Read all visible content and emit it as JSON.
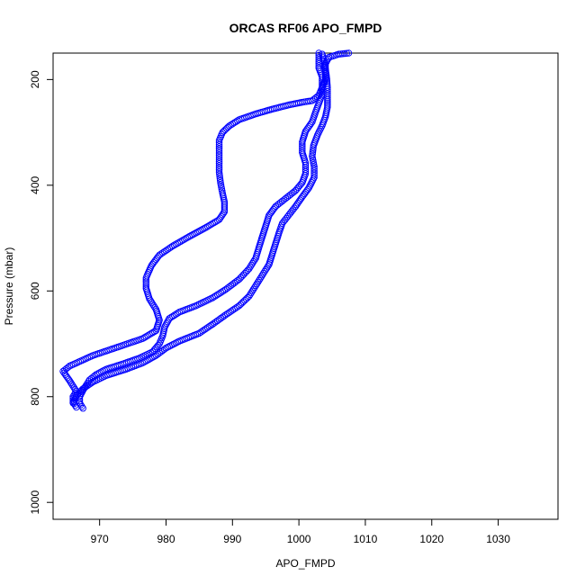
{
  "chart_data": {
    "type": "scatter",
    "title": "ORCAS RF06 APO_FMPD",
    "xlabel": "APO_FMPD",
    "ylabel": "Pressure (mbar)",
    "xlim": [
      963,
      1039
    ],
    "ylim": [
      1032,
      150
    ],
    "y_reversed": true,
    "x_ticks": [
      970,
      980,
      990,
      1000,
      1010,
      1020,
      1030
    ],
    "y_ticks": [
      200,
      400,
      600,
      800,
      1000
    ],
    "grid": false,
    "marker": "open-circle",
    "color": "#0000ff",
    "series": [
      {
        "points": [
          [
            1007.5,
            150
          ],
          [
            1006,
            152
          ],
          [
            1004.5,
            158
          ],
          [
            1004,
            170
          ],
          [
            1004,
            185
          ],
          [
            1004,
            200
          ],
          [
            1003.5,
            215
          ],
          [
            1003,
            230
          ],
          [
            1002,
            240
          ],
          [
            1000.5,
            243
          ],
          [
            998.5,
            248
          ],
          [
            996,
            256
          ],
          [
            993.5,
            265
          ],
          [
            991,
            276
          ],
          [
            989.5,
            288
          ],
          [
            988.5,
            300
          ],
          [
            988,
            315
          ],
          [
            988,
            335
          ],
          [
            988,
            355
          ],
          [
            988,
            375
          ],
          [
            988.2,
            395
          ],
          [
            988.5,
            415
          ],
          [
            988.8,
            432
          ],
          [
            988.8,
            450
          ],
          [
            988,
            465
          ],
          [
            986,
            480
          ],
          [
            983.5,
            497
          ],
          [
            981,
            515
          ],
          [
            979,
            532
          ],
          [
            977.8,
            552
          ],
          [
            977,
            575
          ],
          [
            977,
            595
          ],
          [
            977.5,
            615
          ],
          [
            978.5,
            635
          ],
          [
            979,
            655
          ],
          [
            978.5,
            675
          ],
          [
            976.5,
            690
          ],
          [
            973,
            705
          ],
          [
            969,
            722
          ],
          [
            965.5,
            742
          ],
          [
            964.5,
            752
          ],
          [
            965.5,
            770
          ],
          [
            966.5,
            790
          ],
          [
            966,
            800
          ],
          [
            966,
            810
          ],
          [
            966.5,
            820
          ]
        ]
      },
      {
        "points": [
          [
            967.5,
            822
          ],
          [
            967,
            812
          ],
          [
            967,
            800
          ],
          [
            967.5,
            788
          ],
          [
            968,
            778
          ],
          [
            968.5,
            768
          ],
          [
            969.5,
            758
          ],
          [
            971,
            748
          ],
          [
            973.5,
            738
          ],
          [
            976,
            727
          ],
          [
            978,
            715
          ],
          [
            979,
            700
          ],
          [
            979.5,
            685
          ],
          [
            979.8,
            668
          ],
          [
            980.5,
            652
          ],
          [
            982,
            640
          ],
          [
            984.5,
            628
          ],
          [
            987,
            613
          ],
          [
            989,
            597
          ],
          [
            991,
            578
          ],
          [
            992.5,
            558
          ],
          [
            993.5,
            538
          ],
          [
            994,
            517
          ],
          [
            994.5,
            497
          ],
          [
            995,
            477
          ],
          [
            995.5,
            457
          ],
          [
            996.5,
            440
          ],
          [
            998,
            425
          ],
          [
            999.5,
            410
          ],
          [
            1000.5,
            395
          ],
          [
            1001,
            378
          ],
          [
            1001,
            358
          ],
          [
            1000.5,
            338
          ],
          [
            1000.5,
            318
          ],
          [
            1001,
            298
          ],
          [
            1002,
            280
          ],
          [
            1002.5,
            262
          ],
          [
            1003,
            245
          ],
          [
            1003.5,
            228
          ],
          [
            1003.5,
            210
          ],
          [
            1003.5,
            195
          ],
          [
            1003,
            178
          ],
          [
            1003,
            162
          ],
          [
            1003,
            150
          ]
        ]
      },
      {
        "points": [
          [
            966,
            812
          ],
          [
            966.5,
            798
          ],
          [
            967.5,
            785
          ],
          [
            969,
            772
          ],
          [
            971,
            760
          ],
          [
            974,
            748
          ],
          [
            976.5,
            736
          ],
          [
            978.5,
            722
          ],
          [
            980,
            708
          ],
          [
            982,
            695
          ],
          [
            985,
            680
          ],
          [
            987,
            663
          ],
          [
            989,
            645
          ],
          [
            991,
            628
          ],
          [
            992.5,
            610
          ],
          [
            993.5,
            590
          ],
          [
            994.5,
            570
          ],
          [
            995.5,
            550
          ],
          [
            996,
            530
          ],
          [
            996.5,
            510
          ],
          [
            997,
            490
          ],
          [
            997.5,
            472
          ],
          [
            998.5,
            456
          ],
          [
            999.5,
            440
          ],
          [
            1000.5,
            422
          ],
          [
            1001.5,
            405
          ],
          [
            1002.3,
            385
          ],
          [
            1002.3,
            365
          ],
          [
            1002,
            345
          ],
          [
            1002.2,
            325
          ],
          [
            1002.8,
            305
          ],
          [
            1003.5,
            287
          ],
          [
            1004,
            270
          ],
          [
            1004.3,
            252
          ],
          [
            1004.3,
            235
          ],
          [
            1004.3,
            215
          ],
          [
            1004.2,
            198
          ],
          [
            1004,
            180
          ],
          [
            1003.8,
            165
          ],
          [
            1003.5,
            152
          ]
        ]
      }
    ]
  }
}
